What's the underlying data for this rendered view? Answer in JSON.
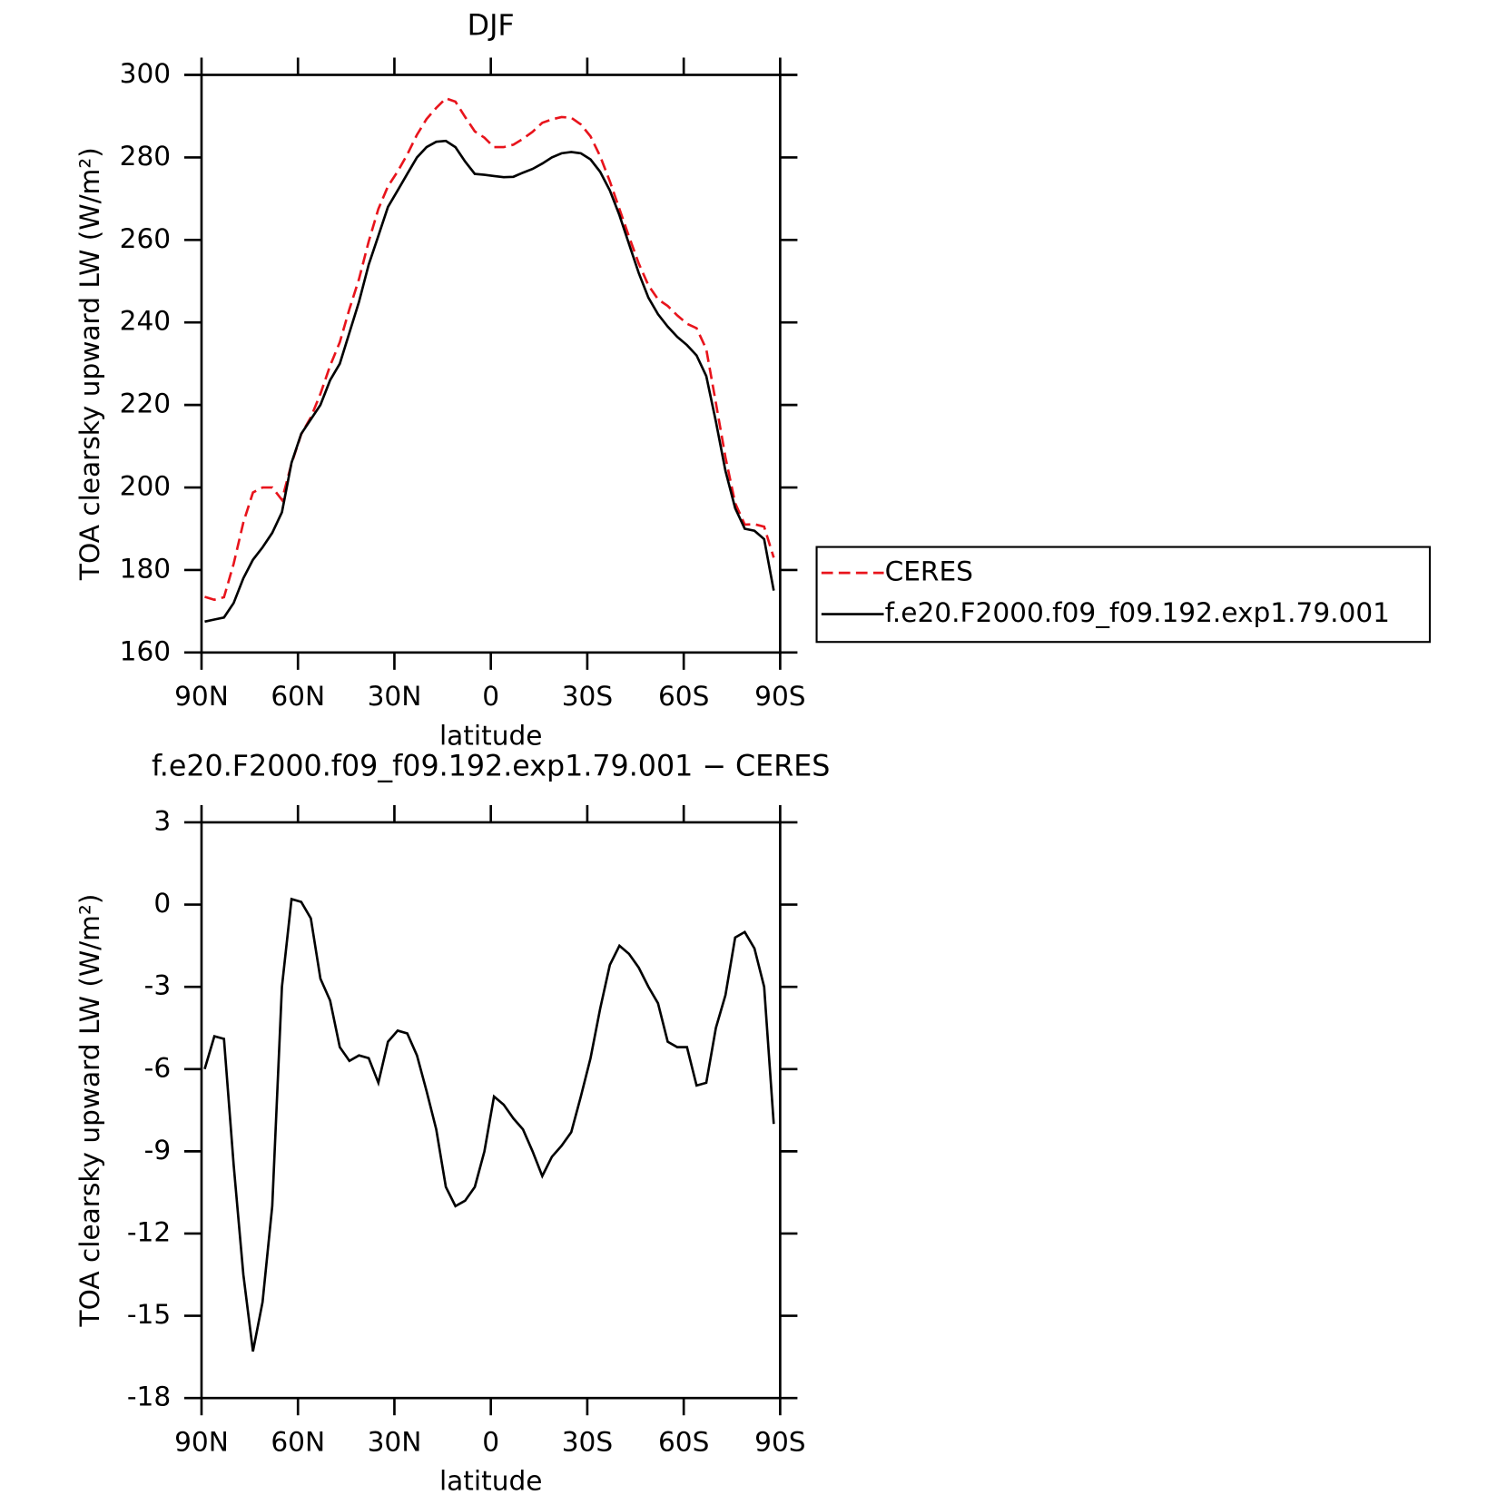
{
  "chart_data": [
    {
      "type": "line",
      "title": "DJF",
      "xlabel": "latitude",
      "ylabel": "TOA clearsky upward LW (W/m²)",
      "x": [
        89,
        86,
        83,
        80,
        77,
        74,
        71,
        68,
        65,
        62,
        59,
        56,
        53,
        50,
        47,
        44,
        41,
        38,
        35,
        32,
        29,
        26,
        23,
        20,
        17,
        14,
        11,
        8,
        5,
        2,
        -1,
        -4,
        -7,
        -10,
        -13,
        -16,
        -19,
        -22,
        -25,
        -28,
        -31,
        -34,
        -37,
        -40,
        -43,
        -46,
        -49,
        -52,
        -55,
        -58,
        -61,
        -64,
        -67,
        -70,
        -73,
        -76,
        -79,
        -82,
        -85,
        -88
      ],
      "series": [
        {
          "name": "CERES",
          "color": "#e8141c",
          "dash": true,
          "values": [
            173.5,
            172.8,
            173.4,
            181.5,
            191.5,
            198.8,
            200,
            200,
            197,
            205.8,
            212.9,
            217,
            222.7,
            229.5,
            235.2,
            243.2,
            250.5,
            259.6,
            267.5,
            273,
            276.6,
            280.7,
            285.5,
            289.3,
            292,
            294.3,
            293.5,
            289.8,
            286.3,
            284.8,
            282.5,
            282.5,
            283.1,
            284.5,
            286.2,
            288.4,
            289.2,
            289.8,
            289.6,
            288,
            285.1,
            280.3,
            274.2,
            267.5,
            260.8,
            254.3,
            249,
            245.6,
            244,
            241.7,
            239.7,
            238.6,
            233.5,
            220.5,
            207.3,
            196.2,
            191,
            191.1,
            190.5,
            183
          ]
        },
        {
          "name": "f.e20.F2000.f09_f09.192.exp1.79.001",
          "color": "#000000",
          "dash": false,
          "values": [
            167.5,
            168,
            168.5,
            172,
            178,
            182.5,
            185.5,
            189,
            194,
            206,
            213,
            216.5,
            220,
            226,
            230,
            237.5,
            245,
            254,
            261,
            268,
            272,
            276,
            280,
            282.5,
            283.8,
            284,
            282.5,
            279,
            276,
            275.8,
            275.5,
            275.2,
            275.3,
            276.3,
            277.2,
            278.5,
            280,
            281,
            281.3,
            281,
            279.5,
            276.5,
            272,
            266,
            259,
            252,
            246,
            242,
            239,
            236.5,
            234.5,
            232,
            227,
            216,
            204,
            195,
            190,
            189.5,
            187.5,
            175
          ]
        }
      ],
      "xlim": [
        90,
        -90
      ],
      "xticks": [
        {
          "value": 90,
          "label": "90N"
        },
        {
          "value": 60,
          "label": "60N"
        },
        {
          "value": 30,
          "label": "30N"
        },
        0,
        {
          "value": -30,
          "label": "30S"
        },
        {
          "value": -60,
          "label": "60S"
        },
        {
          "value": -90,
          "label": "90S"
        }
      ],
      "ylim": [
        160,
        300
      ],
      "yticks": [
        160,
        180,
        200,
        220,
        240,
        260,
        280,
        300
      ],
      "legend": "right"
    },
    {
      "type": "line",
      "title": "f.e20.F2000.f09_f09.192.exp1.79.001 − CERES",
      "xlabel": "latitude",
      "ylabel": "TOA clearsky upward LW (W/m²)",
      "x": [
        89,
        86,
        83,
        80,
        77,
        74,
        71,
        68,
        65,
        62,
        59,
        56,
        53,
        50,
        47,
        44,
        41,
        38,
        35,
        32,
        29,
        26,
        23,
        20,
        17,
        14,
        11,
        8,
        5,
        2,
        -1,
        -4,
        -7,
        -10,
        -13,
        -16,
        -19,
        -22,
        -25,
        -28,
        -31,
        -34,
        -37,
        -40,
        -43,
        -46,
        -49,
        -52,
        -55,
        -58,
        -61,
        -64,
        -67,
        -70,
        -73,
        -76,
        -79,
        -82,
        -85,
        -88
      ],
      "series": [
        {
          "color": "#000000",
          "dash": false,
          "values": [
            -6,
            -4.8,
            -4.9,
            -9.5,
            -13.5,
            -16.3,
            -14.5,
            -11,
            -3,
            0.2,
            0.1,
            -0.5,
            -2.7,
            -3.5,
            -5.2,
            -5.7,
            -5.5,
            -5.6,
            -6.5,
            -5,
            -4.6,
            -4.7,
            -5.5,
            -6.8,
            -8.2,
            -10.3,
            -11,
            -10.8,
            -10.3,
            -9,
            -7,
            -7.3,
            -7.8,
            -8.2,
            -9,
            -9.9,
            -9.2,
            -8.8,
            -8.3,
            -7,
            -5.6,
            -3.8,
            -2.2,
            -1.5,
            -1.8,
            -2.3,
            -3,
            -3.6,
            -5,
            -5.2,
            -5.2,
            -6.6,
            -6.5,
            -4.5,
            -3.3,
            -1.2,
            -1,
            -1.6,
            -3,
            -8
          ]
        }
      ],
      "xlim": [
        90,
        -90
      ],
      "xticks": [
        {
          "value": 90,
          "label": "90N"
        },
        {
          "value": 60,
          "label": "60N"
        },
        {
          "value": 30,
          "label": "30N"
        },
        0,
        {
          "value": -30,
          "label": "30S"
        },
        {
          "value": -60,
          "label": "60S"
        },
        {
          "value": -90,
          "label": "90S"
        }
      ],
      "ylim": [
        -18,
        3
      ],
      "yticks": [
        -18,
        -15,
        -12,
        -9,
        -6,
        -3,
        0,
        3
      ]
    }
  ]
}
